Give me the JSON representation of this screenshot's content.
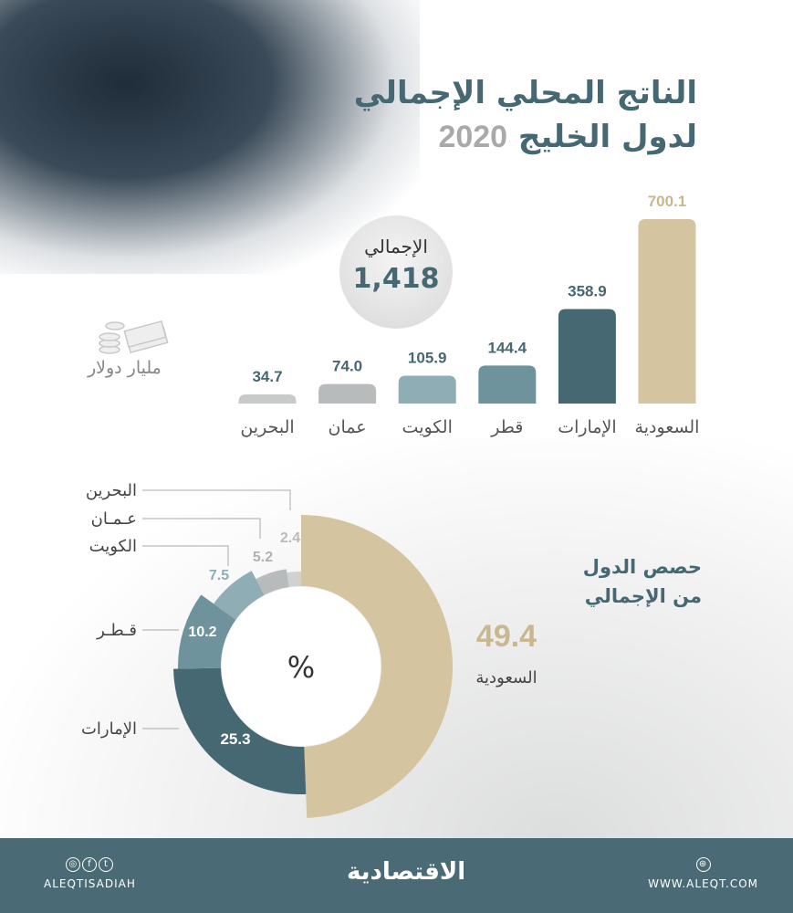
{
  "title": {
    "line1": "الناتج المحلي الإجمالي",
    "line2": "لدول الخليج",
    "year": "2020"
  },
  "total": {
    "label": "الإجمالي",
    "value": "1,418"
  },
  "unit": "مليار دولار",
  "share_title": {
    "line1": "حصص الدول",
    "line2": "من الإجمالي"
  },
  "donut_center": "%",
  "chart_data": [
    {
      "type": "bar",
      "title": "الناتج المحلي الإجمالي لدول الخليج 2020",
      "ylabel": "مليار دولار",
      "categories": [
        "السعودية",
        "الإمارات",
        "قطر",
        "الكويت",
        "عمان",
        "البحرين"
      ],
      "values": [
        700.1,
        358.9,
        144.4,
        105.9,
        74.0,
        34.7
      ],
      "value_labels": [
        "700.1",
        "358.9",
        "144.4",
        "105.9",
        "74.0",
        "34.7"
      ],
      "colors": [
        "#d4c4a0",
        "#466872",
        "#6f939c",
        "#8fadb4",
        "#b8bbbb",
        "#c8caca"
      ]
    },
    {
      "type": "pie",
      "title": "حصص الدول من الإجمالي",
      "unit": "%",
      "categories": [
        "السعودية",
        "الإمارات",
        "قطر",
        "الكويت",
        "عمان",
        "البحرين"
      ],
      "label_text": [
        "السعودية",
        "الإمارات",
        "قـطـر",
        "الكويت",
        "عـمـان",
        "البحرين"
      ],
      "values": [
        49.4,
        25.3,
        10.2,
        7.5,
        5.2,
        2.4
      ],
      "value_labels": [
        "49.4",
        "25.3",
        "10.2",
        "7.5",
        "5.2",
        "2.4"
      ],
      "colors": [
        "#d4c4a0",
        "#466872",
        "#6f939c",
        "#8fadb4",
        "#b8bbbb",
        "#d0d1d1"
      ]
    }
  ],
  "footer": {
    "handle": "ALEQTISADIAH",
    "logo": "الاقتصادية",
    "website": "WWW.ALEQT.COM",
    "social_icons": [
      "instagram-icon",
      "facebook-icon",
      "twitter-icon"
    ],
    "web_icon": "globe-icon"
  }
}
